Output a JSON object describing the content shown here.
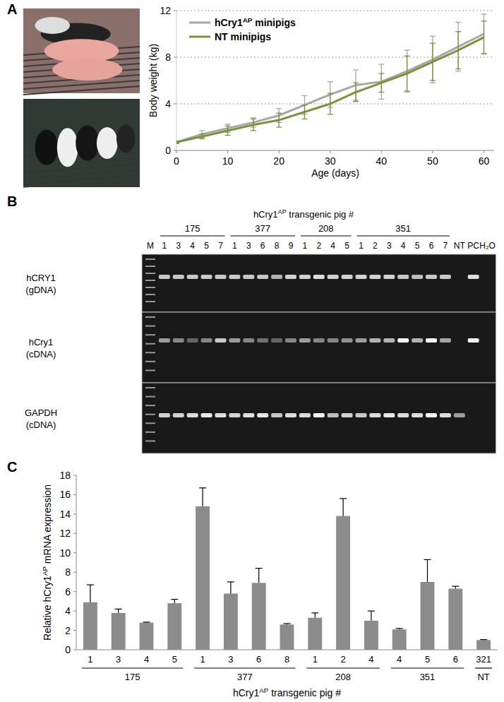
{
  "panel_labels": [
    "A",
    "B",
    "C"
  ],
  "chart_data": [
    {
      "type": "line",
      "x_label": "Age (days)",
      "y_label": "Body weight (kg)",
      "x": [
        0,
        5,
        10,
        15,
        20,
        25,
        30,
        35,
        40,
        45,
        50,
        55,
        60
      ],
      "xlim": [
        0,
        62
      ],
      "ylim": [
        0,
        12
      ],
      "xticks": [
        0,
        10,
        20,
        30,
        40,
        50,
        60
      ],
      "yticks": [
        0,
        4,
        8,
        12
      ],
      "grid": true,
      "legend": "upper left",
      "series": [
        {
          "name": "hCry1AP minipigs",
          "color": "#a6a6a6",
          "values": [
            0.7,
            1.4,
            1.9,
            2.4,
            3.0,
            3.9,
            4.8,
            5.6,
            5.9,
            6.8,
            7.8,
            8.9,
            10.0
          ],
          "errors": [
            0.1,
            0.3,
            0.35,
            0.4,
            0.6,
            0.8,
            1.1,
            1.3,
            1.5,
            1.8,
            2.0,
            2.1,
            1.7
          ]
        },
        {
          "name": "NT minipigs",
          "color": "#77933c",
          "values": [
            0.7,
            1.2,
            1.7,
            2.2,
            2.6,
            3.3,
            4.0,
            5.0,
            5.8,
            6.6,
            7.6,
            8.6,
            9.7
          ],
          "errors": [
            0.1,
            0.2,
            0.4,
            0.5,
            0.6,
            0.6,
            0.9,
            0.8,
            0.8,
            1.5,
            1.6,
            1.6,
            1.4
          ]
        }
      ]
    },
    {
      "type": "bar",
      "x_label": "hCry1AP transgenic pig #",
      "y_label": "Relative hCry1AP mRNA expression",
      "categories": [
        "1",
        "3",
        "4",
        "5",
        "1",
        "3",
        "6",
        "8",
        "1",
        "2",
        "4",
        "4",
        "5",
        "6",
        "321"
      ],
      "groups": [
        {
          "label": "175",
          "count": 4
        },
        {
          "label": "377",
          "count": 4
        },
        {
          "label": "208",
          "count": 3
        },
        {
          "label": "351",
          "count": 3
        },
        {
          "label": "NT",
          "count": 1
        }
      ],
      "values": [
        4.9,
        3.8,
        2.8,
        4.8,
        14.8,
        5.8,
        6.9,
        2.6,
        3.3,
        13.8,
        3.0,
        2.1,
        7.0,
        6.3,
        1.0
      ],
      "errors": [
        1.8,
        0.4,
        0.05,
        0.4,
        1.9,
        1.2,
        1.5,
        0.1,
        0.5,
        1.8,
        1.0,
        0.1,
        2.3,
        0.25,
        0.05
      ],
      "color": "#8c8c8c",
      "ylim": [
        0,
        18
      ],
      "yticks": [
        0,
        2,
        4,
        6,
        8,
        10,
        12,
        14,
        16,
        18
      ]
    }
  ],
  "gel": {
    "title": "hCry1AP transgenic pig #",
    "marker": "M",
    "groups": [
      {
        "label": "175",
        "lanes": [
          "1",
          "3",
          "4",
          "5",
          "7"
        ]
      },
      {
        "label": "377",
        "lanes": [
          "1",
          "3",
          "6",
          "8",
          "9"
        ]
      },
      {
        "label": "208",
        "lanes": [
          "1",
          "2",
          "4",
          "5"
        ]
      },
      {
        "label": "351",
        "lanes": [
          "1",
          "2",
          "3",
          "4",
          "5",
          "6",
          "7"
        ]
      }
    ],
    "extra_lanes": [
      "NT",
      "PC",
      "H₂O"
    ],
    "rows": [
      {
        "label": [
          "hCRY1",
          "(gDNA)"
        ],
        "bands": [
          0.8,
          0.8,
          0.8,
          0.8,
          0.8,
          0.8,
          0.8,
          0.8,
          0.7,
          0.85,
          0.85,
          0.9,
          0.85,
          0.85,
          0.85,
          0.85,
          0.85,
          0.8,
          0.75,
          0.8,
          0.8,
          0,
          0.9,
          0
        ]
      },
      {
        "label": [
          "hCry1",
          "(cDNA)"
        ],
        "bands": [
          0.6,
          0.5,
          0.35,
          0.5,
          0.8,
          0.6,
          0.5,
          0.4,
          0.35,
          0.5,
          0.6,
          0.5,
          0.5,
          0.55,
          0.6,
          0.7,
          0.7,
          1,
          0.7,
          1,
          0.65,
          0,
          1,
          0
        ]
      },
      {
        "label": [
          "GAPDH",
          "(cDNA)"
        ],
        "bands": [
          0.85,
          0.85,
          0.9,
          0.95,
          0.9,
          0.85,
          0.9,
          0.95,
          0.8,
          0.9,
          0.9,
          1,
          0.75,
          0.85,
          0.8,
          0.9,
          0.95,
          0.9,
          0.9,
          1,
          0.9,
          0.6,
          0,
          0
        ]
      }
    ]
  }
}
